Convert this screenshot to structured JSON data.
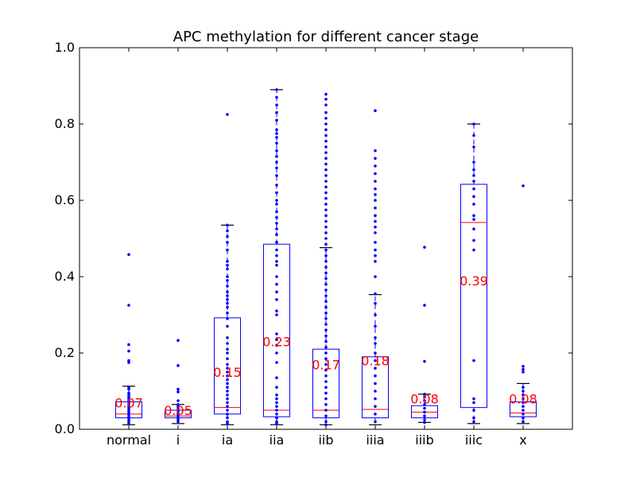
{
  "chart_data": {
    "type": "box",
    "title": "APC methylation for different cancer stage",
    "xlabel": "",
    "ylabel": "",
    "ylim": [
      0.0,
      1.0
    ],
    "yticks": [
      "0.0",
      "0.2",
      "0.4",
      "0.6",
      "0.8",
      "1.0"
    ],
    "grid": false,
    "colors": {
      "box": "#0000ff",
      "median": "#ff0000",
      "mean_label": "#ff0000",
      "cap": "#000000",
      "points": "#0000ff"
    },
    "categories": [
      "normal",
      "i",
      "ia",
      "iia",
      "iib",
      "iiia",
      "iiib",
      "iiic",
      "x"
    ],
    "boxes": [
      {
        "category": "normal",
        "q1": 0.03,
        "median": 0.04,
        "q3": 0.072,
        "whisker_low": 0.012,
        "whisker_high": 0.113,
        "mean_label": "0.07",
        "points": [
          0.458,
          0.325,
          0.222,
          0.205,
          0.18,
          0.175,
          0.11,
          0.105,
          0.095,
          0.09,
          0.085,
          0.08,
          0.075,
          0.07,
          0.065,
          0.06,
          0.055,
          0.05,
          0.045,
          0.04,
          0.035,
          0.03,
          0.025,
          0.02,
          0.015
        ]
      },
      {
        "category": "i",
        "q1": 0.03,
        "median": 0.035,
        "q3": 0.05,
        "whisker_low": 0.015,
        "whisker_high": 0.065,
        "mean_label": "0.05",
        "points": [
          0.233,
          0.167,
          0.105,
          0.098,
          0.075,
          0.065,
          0.06,
          0.055,
          0.05,
          0.045,
          0.04,
          0.035,
          0.03,
          0.025,
          0.02
        ]
      },
      {
        "category": "ia",
        "q1": 0.04,
        "median": 0.057,
        "q3": 0.292,
        "whisker_low": 0.012,
        "whisker_high": 0.535,
        "mean_label": "0.15",
        "points": [
          0.825,
          0.535,
          0.52,
          0.505,
          0.49,
          0.47,
          0.44,
          0.43,
          0.42,
          0.4,
          0.39,
          0.375,
          0.36,
          0.35,
          0.34,
          0.33,
          0.32,
          0.305,
          0.29,
          0.27,
          0.24,
          0.225,
          0.21,
          0.2,
          0.185,
          0.17,
          0.16,
          0.15,
          0.14,
          0.13,
          0.12,
          0.11,
          0.1,
          0.09,
          0.08,
          0.07,
          0.06,
          0.05,
          0.04,
          0.03,
          0.02,
          0.015
        ]
      },
      {
        "category": "iia",
        "q1": 0.033,
        "median": 0.05,
        "q3": 0.485,
        "whisker_low": 0.012,
        "whisker_high": 0.89,
        "mean_label": "0.23",
        "points": [
          0.89,
          0.87,
          0.85,
          0.83,
          0.81,
          0.785,
          0.775,
          0.765,
          0.75,
          0.73,
          0.715,
          0.7,
          0.685,
          0.665,
          0.64,
          0.62,
          0.6,
          0.59,
          0.57,
          0.555,
          0.54,
          0.525,
          0.51,
          0.49,
          0.47,
          0.455,
          0.44,
          0.43,
          0.4,
          0.38,
          0.36,
          0.34,
          0.31,
          0.3,
          0.25,
          0.235,
          0.22,
          0.2,
          0.175,
          0.135,
          0.11,
          0.09,
          0.08,
          0.07,
          0.06,
          0.05,
          0.04,
          0.03,
          0.02,
          0.015
        ]
      },
      {
        "category": "iib",
        "q1": 0.03,
        "median": 0.05,
        "q3": 0.21,
        "whisker_low": 0.012,
        "whisker_high": 0.476,
        "mean_label": "0.17",
        "points": [
          0.878,
          0.865,
          0.85,
          0.83,
          0.815,
          0.8,
          0.785,
          0.77,
          0.755,
          0.74,
          0.725,
          0.71,
          0.695,
          0.68,
          0.665,
          0.65,
          0.635,
          0.62,
          0.605,
          0.59,
          0.575,
          0.56,
          0.545,
          0.53,
          0.515,
          0.5,
          0.485,
          0.47,
          0.455,
          0.44,
          0.425,
          0.41,
          0.395,
          0.38,
          0.365,
          0.35,
          0.335,
          0.32,
          0.305,
          0.29,
          0.275,
          0.26,
          0.245,
          0.23,
          0.215,
          0.2,
          0.185,
          0.17,
          0.155,
          0.14,
          0.125,
          0.11,
          0.095,
          0.08,
          0.065,
          0.05,
          0.035,
          0.02,
          0.012
        ]
      },
      {
        "category": "iiia",
        "q1": 0.03,
        "median": 0.052,
        "q3": 0.19,
        "whisker_low": 0.012,
        "whisker_high": 0.353,
        "mean_label": "0.18",
        "points": [
          0.835,
          0.73,
          0.71,
          0.69,
          0.67,
          0.65,
          0.63,
          0.615,
          0.6,
          0.58,
          0.56,
          0.545,
          0.53,
          0.515,
          0.49,
          0.47,
          0.455,
          0.44,
          0.4,
          0.355,
          0.33,
          0.3,
          0.27,
          0.24,
          0.225,
          0.2,
          0.18,
          0.16,
          0.14,
          0.12,
          0.1,
          0.08,
          0.06,
          0.04,
          0.02
        ]
      },
      {
        "category": "iiib",
        "q1": 0.03,
        "median": 0.045,
        "q3": 0.062,
        "whisker_low": 0.018,
        "whisker_high": 0.092,
        "mean_label": "0.08",
        "points": [
          0.477,
          0.325,
          0.178,
          0.092,
          0.085,
          0.075,
          0.065,
          0.055,
          0.045,
          0.035,
          0.025,
          0.018
        ]
      },
      {
        "category": "iiic",
        "q1": 0.057,
        "median": 0.542,
        "q3": 0.642,
        "whisker_low": 0.015,
        "whisker_high": 0.8,
        "mean_label": "0.39",
        "points": [
          0.8,
          0.77,
          0.74,
          0.7,
          0.68,
          0.665,
          0.65,
          0.63,
          0.61,
          0.59,
          0.56,
          0.55,
          0.525,
          0.495,
          0.47,
          0.18,
          0.08,
          0.07,
          0.05,
          0.03,
          0.02
        ]
      },
      {
        "category": "x",
        "q1": 0.033,
        "median": 0.043,
        "q3": 0.072,
        "whisker_low": 0.015,
        "whisker_high": 0.12,
        "mean_label": "0.08",
        "points": [
          0.638,
          0.165,
          0.157,
          0.15,
          0.11,
          0.1,
          0.09,
          0.08,
          0.07,
          0.06,
          0.05,
          0.04,
          0.03,
          0.02
        ]
      }
    ]
  }
}
